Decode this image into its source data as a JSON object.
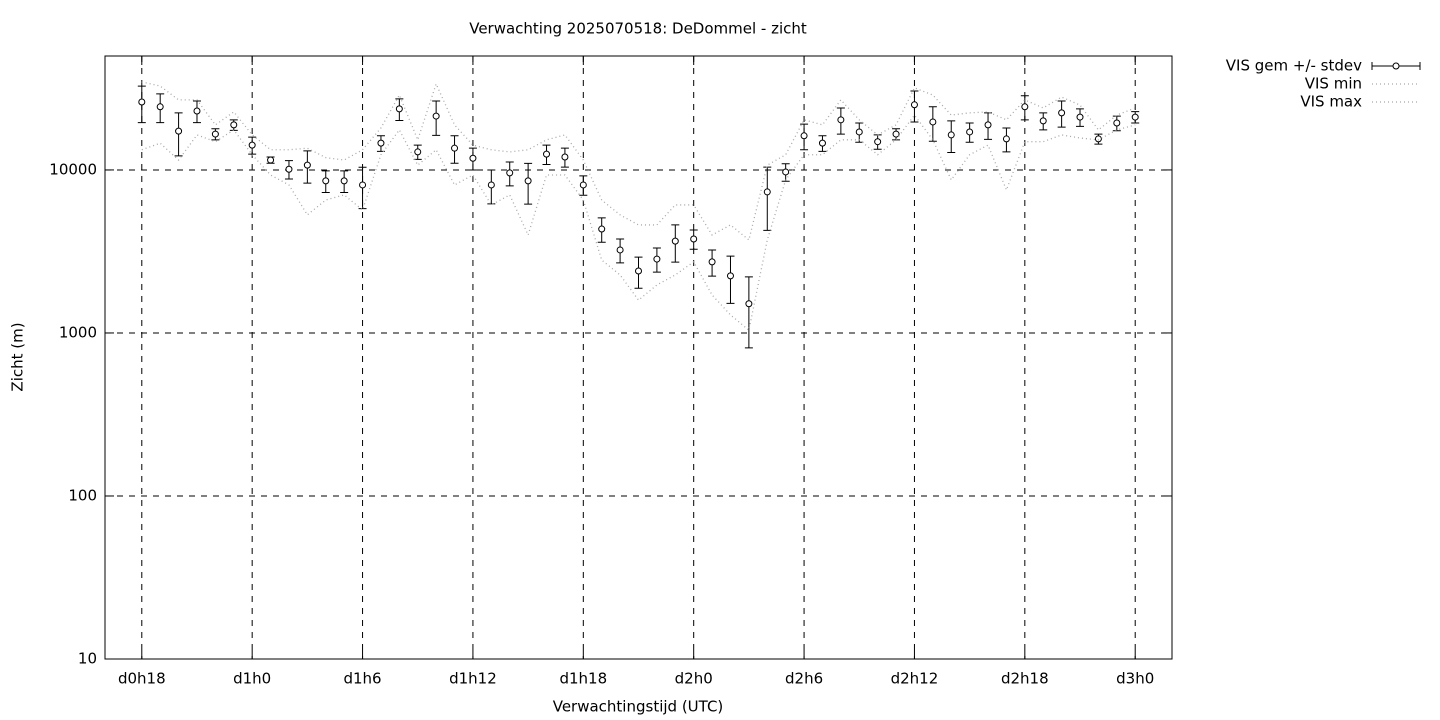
{
  "chart_data": {
    "type": "errorbar",
    "title": "Verwachting 2025070518: DeDommel - zicht",
    "x_label": "Verwachtingstijd (UTC)",
    "y_label": "Zicht (m)",
    "x": [
      18,
      19,
      20,
      21,
      22,
      23,
      24,
      25,
      26,
      27,
      28,
      29,
      30,
      31,
      32,
      33,
      34,
      35,
      36,
      37,
      38,
      39,
      40,
      41,
      42,
      43,
      44,
      45,
      46,
      47,
      48,
      49,
      50,
      51,
      52,
      53,
      54,
      55,
      56,
      57,
      58,
      59,
      60,
      61,
      62,
      63,
      64,
      65,
      66,
      67,
      68,
      69,
      70,
      71,
      72
    ],
    "xlim": [
      16,
      74
    ],
    "xticks": [
      {
        "value": 18,
        "label": "d0h18"
      },
      {
        "value": 24,
        "label": "d1h0"
      },
      {
        "value": 30,
        "label": "d1h6"
      },
      {
        "value": 36,
        "label": "d1h12"
      },
      {
        "value": 42,
        "label": "d1h18"
      },
      {
        "value": 48,
        "label": "d2h0"
      },
      {
        "value": 54,
        "label": "d2h6"
      },
      {
        "value": 60,
        "label": "d2h12"
      },
      {
        "value": 66,
        "label": "d2h18"
      },
      {
        "value": 72,
        "label": "d3h0"
      }
    ],
    "ylim": [
      10,
      50000
    ],
    "yticks": [
      10,
      100,
      1000,
      10000
    ],
    "yscale": "log",
    "grid": true,
    "legend": "outside-top-right",
    "series": [
      {
        "name": "VIS gem +/- stdev",
        "color": "#000000",
        "style": "errorbar",
        "values": [
          26100,
          24400,
          17300,
          23000,
          16600,
          18900,
          14200,
          11500,
          10100,
          10700,
          8570,
          8570,
          8090,
          14600,
          23700,
          12900,
          21400,
          13600,
          11800,
          8090,
          9590,
          8570,
          12500,
          12000,
          8090,
          4340,
          3230,
          2400,
          2840,
          3660,
          3770,
          2730,
          2240,
          1510,
          7330,
          9720,
          16200,
          14600,
          20300,
          17100,
          14900,
          16600,
          25100,
          19700,
          16400,
          17100,
          18900,
          15500,
          24400,
          20000,
          22400,
          21100,
          15500,
          19400,
          21100
        ],
        "errors": [
          6600,
          4900,
          5100,
          3500,
          1300,
          1400,
          1700,
          500,
          1300,
          2400,
          1300,
          1300,
          2300,
          1600,
          3600,
          1300,
          5100,
          2600,
          1800,
          1900,
          1600,
          2400,
          1700,
          1600,
          1100,
          740,
          540,
          520,
          480,
          940,
          510,
          500,
          720,
          700,
          3070,
          1200,
          2900,
          1600,
          3700,
          2300,
          1500,
          1300,
          5400,
          4700,
          3600,
          2300,
          3500,
          2600,
          4100,
          2400,
          4100,
          2600,
          1100,
          2000,
          1700
        ]
      },
      {
        "name": "VIS min",
        "color": "#a8a8a8",
        "style": "dotted",
        "values": [
          13300,
          14600,
          11500,
          16400,
          14900,
          17600,
          12400,
          9310,
          8090,
          5300,
          6540,
          7030,
          5680,
          12400,
          17600,
          10700,
          13300,
          8090,
          9310,
          6100,
          7030,
          3990,
          9310,
          9310,
          6540,
          2800,
          2270,
          1590,
          1970,
          2270,
          2730,
          1710,
          1290,
          1040,
          3720,
          8690,
          12400,
          12400,
          15300,
          15300,
          12400,
          15300,
          21700,
          15300,
          8690,
          12400,
          14200,
          7540,
          14900,
          14900,
          16400,
          15700,
          15300,
          17600,
          18900
        ]
      },
      {
        "name": "VIS max",
        "color": "#a8a8a8",
        "style": "dotted",
        "values": [
          34700,
          32700,
          26900,
          26900,
          18900,
          22700,
          16400,
          13300,
          13300,
          13600,
          11900,
          11500,
          13300,
          18100,
          28800,
          15300,
          33700,
          18900,
          14200,
          13300,
          12900,
          13300,
          15300,
          16400,
          11500,
          6540,
          5300,
          4600,
          4600,
          6100,
          6100,
          3990,
          4600,
          3720,
          10700,
          12400,
          20300,
          18900,
          26900,
          20300,
          16400,
          18900,
          31900,
          28800,
          21700,
          22400,
          22700,
          20300,
          26900,
          24000,
          28000,
          25000,
          17600,
          21700,
          24000
        ]
      }
    ]
  }
}
